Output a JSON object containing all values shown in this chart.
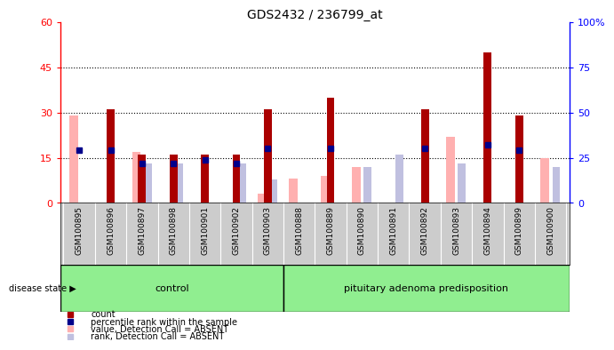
{
  "title": "GDS2432 / 236799_at",
  "samples": [
    "GSM100895",
    "GSM100896",
    "GSM100897",
    "GSM100898",
    "GSM100901",
    "GSM100902",
    "GSM100903",
    "GSM100888",
    "GSM100889",
    "GSM100890",
    "GSM100891",
    "GSM100892",
    "GSM100893",
    "GSM100894",
    "GSM100899",
    "GSM100900"
  ],
  "count": [
    0,
    31,
    16,
    16,
    16,
    16,
    31,
    0,
    35,
    0,
    0,
    31,
    0,
    50,
    29,
    0
  ],
  "percentile": [
    29,
    29,
    22,
    22,
    24,
    22,
    30,
    null,
    30,
    null,
    null,
    30,
    null,
    32,
    29,
    null
  ],
  "value_absent": [
    29,
    null,
    17,
    null,
    null,
    null,
    3,
    8,
    9,
    12,
    null,
    null,
    22,
    null,
    null,
    15
  ],
  "rank_absent": [
    null,
    null,
    22,
    22,
    null,
    22,
    13,
    null,
    null,
    20,
    27,
    null,
    22,
    null,
    null,
    20
  ],
  "control_count": 7,
  "disease_count": 9,
  "ylim_left": [
    0,
    60
  ],
  "ylim_right": [
    0,
    100
  ],
  "yticks_left": [
    0,
    15,
    30,
    45,
    60
  ],
  "yticks_right": [
    0,
    25,
    50,
    75,
    100
  ],
  "color_count": "#aa0000",
  "color_percentile": "#00008b",
  "color_value_absent": "#ffb0b0",
  "color_rank_absent": "#c0c0e0",
  "control_label": "control",
  "disease_label": "pituitary adenoma predisposition",
  "group_color": "#90ee90",
  "xlabels_bg": "#cccccc",
  "legend_labels": [
    "count",
    "percentile rank within the sample",
    "value, Detection Call = ABSENT",
    "rank, Detection Call = ABSENT"
  ],
  "legend_colors": [
    "#aa0000",
    "#00008b",
    "#ffb0b0",
    "#c0c0e0"
  ],
  "disease_state_label": "disease state"
}
